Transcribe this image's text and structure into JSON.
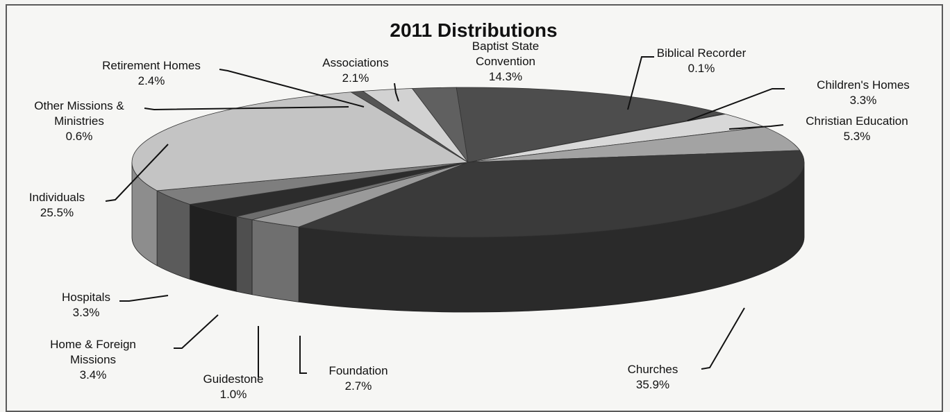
{
  "chart_data": {
    "type": "pie",
    "title": "2011 Distributions",
    "slices": [
      {
        "label": "Baptist State Convention",
        "value": 14.3,
        "value_label": "14.3%",
        "color": "#4d4d4d"
      },
      {
        "label": "Biblical Recorder",
        "value": 0.1,
        "value_label": "0.1%",
        "color": "#c9c9c9"
      },
      {
        "label": "Children's Homes",
        "value": 3.3,
        "value_label": "3.3%",
        "color": "#d8d8d8"
      },
      {
        "label": "Christian Education",
        "value": 5.3,
        "value_label": "5.3%",
        "color": "#a3a3a3"
      },
      {
        "label": "Churches",
        "value": 35.9,
        "value_label": "35.9%",
        "color": "#3a3a3a"
      },
      {
        "label": "Foundation",
        "value": 2.7,
        "value_label": "2.7%",
        "color": "#9a9a9a"
      },
      {
        "label": "Guidestone",
        "value": 1.0,
        "value_label": "1.0%",
        "color": "#6e6e6e"
      },
      {
        "label": "Home & Foreign Missions",
        "value": 3.4,
        "value_label": "3.4%",
        "color": "#2c2c2c"
      },
      {
        "label": "Hospitals",
        "value": 3.3,
        "value_label": "3.3%",
        "color": "#7e7e7e"
      },
      {
        "label": "Individuals",
        "value": 25.5,
        "value_label": "25.5%",
        "color": "#c4c4c4"
      },
      {
        "label": "Other Missions & Ministries",
        "value": 0.6,
        "value_label": "0.6%",
        "color": "#555555"
      },
      {
        "label": "Retirement Homes",
        "value": 2.4,
        "value_label": "2.4%",
        "color": "#d2d2d2"
      },
      {
        "label": "Associations",
        "value": 2.1,
        "value_label": "2.1%",
        "color": "#606060"
      }
    ]
  }
}
